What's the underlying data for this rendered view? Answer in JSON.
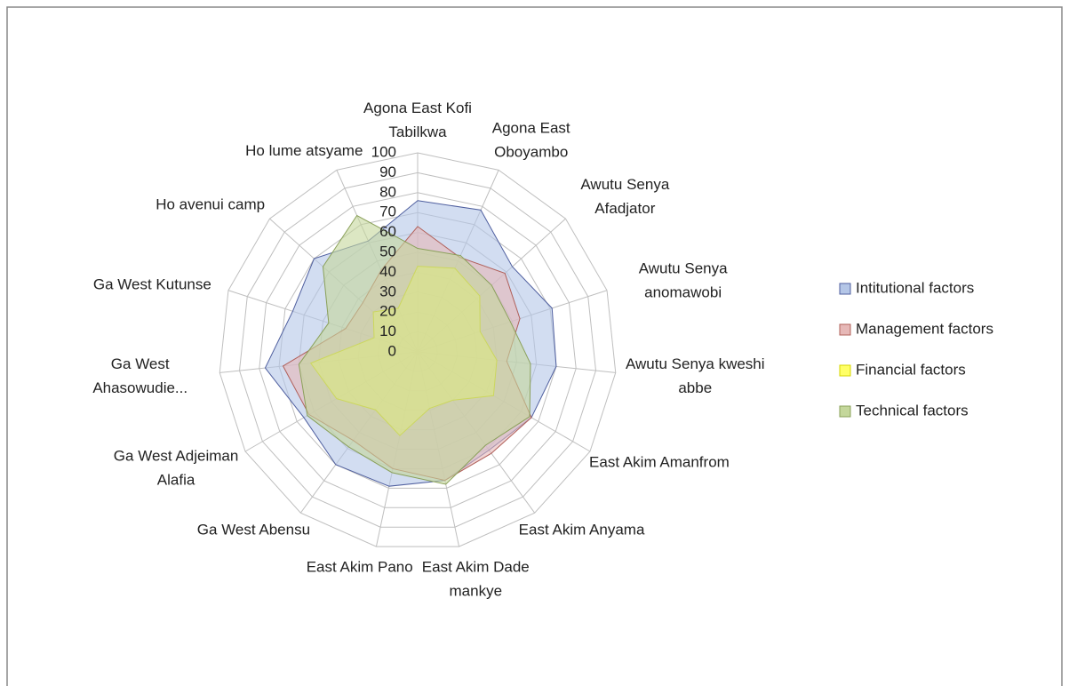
{
  "chart_data": {
    "type": "radar",
    "categories": [
      "Agona East Kofi Tabilkwa",
      "Agona East Oboyambo",
      "Awutu Senya Afadjator",
      "Awutu Senya anomawobi",
      "Awutu Senya kweshi abbe",
      "East Akim Amanfrom",
      "East Akim Anyama",
      "East Akim Dade mankye",
      "East Akim Pano",
      "Ga West Abensu",
      "Ga West Adjeiman Alafia",
      "Ga West Ahasowudie...",
      "Ga West Kutunse",
      "Ho avenui camp",
      "Ho lume atsyame"
    ],
    "series": [
      {
        "name": "Intitutional factors",
        "color": "#b4c6e7",
        "line_color": "#4f5f9f",
        "values": [
          76,
          78,
          64,
          71,
          70,
          66,
          61,
          66,
          69,
          70,
          66,
          77,
          66,
          70,
          61
        ]
      },
      {
        "name": "Management factors",
        "color": "#e6b8b7",
        "line_color": "#b0605a",
        "values": [
          63,
          52,
          59,
          54,
          45,
          66,
          63,
          66,
          60,
          55,
          63,
          68,
          38,
          37,
          45
        ]
      },
      {
        "name": "Financial factors",
        "color": "#ffff66",
        "line_color": "#d6d600",
        "values": [
          43,
          46,
          42,
          33,
          40,
          44,
          30,
          29,
          43,
          36,
          47,
          54,
          23,
          30,
          24
        ]
      },
      {
        "name": "Technical factors",
        "color": "#c4d79b",
        "line_color": "#8aa05a",
        "values": [
          52,
          53,
          50,
          49,
          57,
          65,
          58,
          68,
          62,
          59,
          64,
          60,
          47,
          64,
          75
        ]
      }
    ],
    "rlim": [
      0,
      100
    ],
    "rticks": [
      0,
      10,
      20,
      30,
      40,
      50,
      60,
      70,
      80,
      90,
      100
    ],
    "grid": true,
    "legend": "right"
  }
}
